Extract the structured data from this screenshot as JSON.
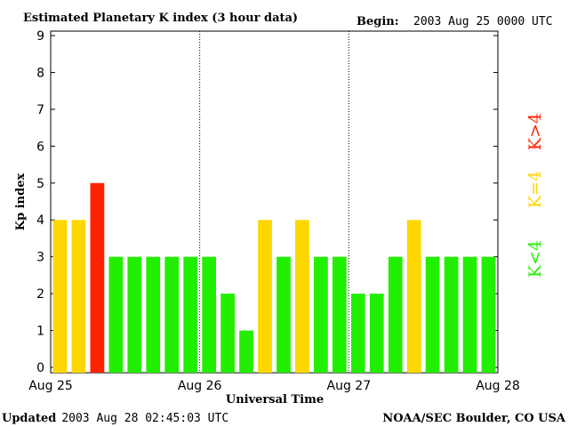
{
  "header": {
    "title": "Estimated Planetary K index (3 hour data)",
    "begin_label": "Begin:",
    "begin_value": "2003 Aug 25 0000 UTC"
  },
  "footer": {
    "updated_label": "Updated",
    "updated_value": "2003 Aug 28 02:45:03 UTC",
    "credit": "NOAA/SEC Boulder, CO USA"
  },
  "legend": {
    "low": "K<4",
    "mid": "K=4",
    "high": "K>4"
  },
  "colors": {
    "low": "#22ee00",
    "mid": "#ffd700",
    "high": "#ff2200",
    "axis": "#000000"
  },
  "chart_data": {
    "type": "bar",
    "title": "Estimated Planetary K index (3 hour data)",
    "xlabel": "Universal Time",
    "ylabel": "Kp index",
    "ylim": [
      0,
      9
    ],
    "yticks": [
      0,
      1,
      2,
      3,
      4,
      5,
      6,
      7,
      8,
      9
    ],
    "day_labels": [
      "Aug 25",
      "Aug 26",
      "Aug 27",
      "Aug 28"
    ],
    "interval_hours": 3,
    "values": [
      4,
      4,
      5,
      3,
      3,
      3,
      3,
      3,
      3,
      2,
      1,
      4,
      3,
      4,
      3,
      3,
      2,
      2,
      3,
      4,
      3,
      3,
      3,
      3
    ],
    "grid": false
  }
}
